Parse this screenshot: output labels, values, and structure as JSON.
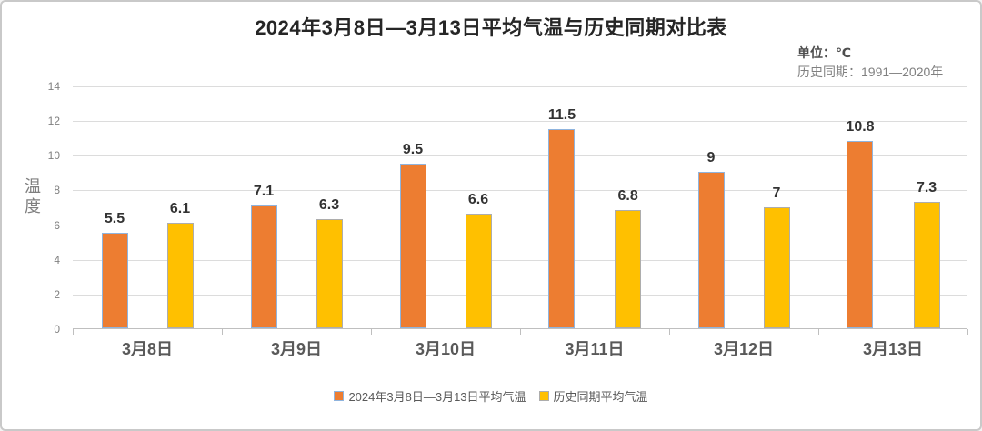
{
  "window": {
    "background": "#ffffff",
    "border_color": "#c9c9c9"
  },
  "header": {
    "title": "2024年3月8日—3月13日平均气温与历史同期对比表",
    "unit_label": "单位：℃",
    "period_label": "历史同期：1991—2020年"
  },
  "chart_data": {
    "type": "bar",
    "title": "2024年3月8日—3月13日平均气温与历史同期对比表",
    "categories": [
      "3月8日",
      "3月9日",
      "3月10日",
      "3月11日",
      "3月12日",
      "3月13日"
    ],
    "series": [
      {
        "name": "2024年3月8日—3月13日平均气温",
        "values": [
          5.5,
          7.1,
          9.5,
          11.5,
          9,
          10.8
        ],
        "fill": "#ED7D31",
        "border": "#8FB4DE"
      },
      {
        "name": "历史同期平均气温",
        "values": [
          6.1,
          6.3,
          6.6,
          6.8,
          7,
          7.3
        ],
        "fill": "#FFC000",
        "border": "#ADADAD"
      }
    ],
    "xlabel": "",
    "ylabel": "温度",
    "ylim": [
      0,
      14
    ],
    "yticks": [
      0,
      2,
      4,
      6,
      8,
      10,
      12,
      14
    ],
    "grid": true,
    "legend_position": "bottom",
    "gridline_color": "#dcdcdc",
    "axis_color": "#bfbfbf",
    "label_color": "#333333"
  }
}
